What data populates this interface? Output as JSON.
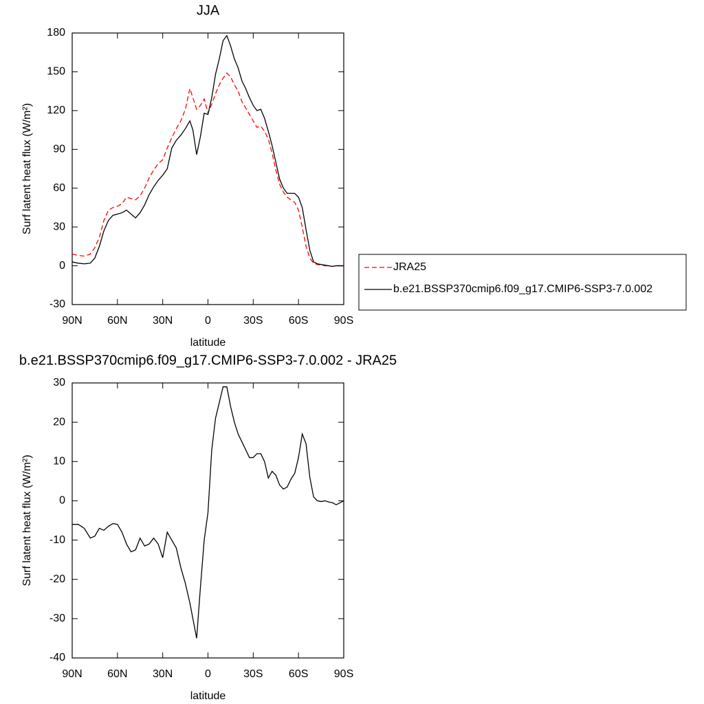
{
  "chart_data": [
    {
      "type": "line",
      "title": "JJA",
      "xlabel": "latitude",
      "ylabel": "Surf latent heat flux (W/m²)",
      "x": [
        90,
        86,
        82,
        78,
        75,
        72,
        69,
        66,
        63,
        60,
        57,
        54,
        51,
        48,
        45,
        42,
        39,
        36,
        33,
        30,
        27,
        24,
        21,
        18,
        15,
        12,
        10,
        7.5,
        5,
        2.5,
        0,
        -2.5,
        -5,
        -7.5,
        -10,
        -12.5,
        -15,
        -17.5,
        -20,
        -22.5,
        -25,
        -27.5,
        -30,
        -32.5,
        -35,
        -37.5,
        -40,
        -42.5,
        -45,
        -47.5,
        -50,
        -52.5,
        -55,
        -57.5,
        -60,
        -62.5,
        -65,
        -67.5,
        -70,
        -72.5,
        -75,
        -77.5,
        -80,
        -82.5,
        -85,
        -87.5,
        -90
      ],
      "series": [
        {
          "name": "JRA25",
          "color": "#ff0000",
          "dash": true,
          "values": [
            9,
            8,
            7.5,
            9,
            14,
            22,
            35,
            43,
            45,
            46,
            48,
            53,
            52,
            51,
            54,
            60,
            68,
            74,
            79,
            82,
            91,
            99,
            106,
            112,
            121,
            137,
            130,
            121,
            124,
            129,
            118,
            125,
            133,
            140,
            145,
            149,
            146,
            140,
            135,
            127,
            122,
            117,
            112,
            107,
            108,
            104,
            98,
            87,
            74,
            63,
            57,
            53,
            51,
            49,
            43,
            30,
            15,
            6,
            2,
            1,
            0.5,
            0,
            0,
            -0.5,
            0,
            0,
            0
          ]
        },
        {
          "name": "b.e21.BSSP370cmip6.f09_g17.CMIP6-SSP3-7.0.002",
          "color": "#000000",
          "dash": false,
          "values": [
            3,
            2,
            1.5,
            2,
            6,
            15,
            27,
            35,
            39,
            40,
            41,
            43,
            40,
            37,
            41,
            47,
            55,
            61,
            66,
            70,
            75,
            91,
            97,
            101,
            106,
            112,
            105,
            86,
            100,
            118,
            117,
            130,
            148,
            160,
            174,
            178,
            170,
            160,
            153,
            143,
            137,
            130,
            124,
            120,
            121,
            114,
            104,
            93,
            80,
            67,
            60,
            56,
            56,
            56,
            53,
            45,
            28,
            12,
            3,
            1.5,
            1,
            0.5,
            0,
            -0.5,
            0,
            0,
            0
          ]
        }
      ],
      "xlim": [
        90,
        -90
      ],
      "xticks": [
        {
          "value": 90,
          "label": "90N"
        },
        {
          "value": 60,
          "label": "60N"
        },
        {
          "value": 30,
          "label": "30N"
        },
        0,
        {
          "value": -30,
          "label": "30S"
        },
        {
          "value": -60,
          "label": "60S"
        },
        {
          "value": -90,
          "label": "90S"
        }
      ],
      "ylim": [
        -30,
        180
      ],
      "yticks": [
        -30,
        0,
        30,
        60,
        90,
        120,
        150,
        180
      ],
      "legend": "right"
    },
    {
      "type": "line",
      "title": "b.e21.BSSP370cmip6.f09_g17.CMIP6-SSP3-7.0.002 - JRA25",
      "xlabel": "latitude",
      "ylabel": "Surf latent heat flux (W/m²)",
      "x": [
        90,
        86,
        82,
        78,
        75,
        72,
        69,
        66,
        63,
        60,
        57,
        54,
        51,
        48,
        45,
        42,
        39,
        36,
        33,
        30,
        27,
        24,
        21,
        18,
        15,
        12,
        10,
        7.5,
        5,
        2.5,
        0,
        -2.5,
        -5,
        -7.5,
        -10,
        -12.5,
        -15,
        -17.5,
        -20,
        -22.5,
        -25,
        -27.5,
        -30,
        -32.5,
        -35,
        -37.5,
        -40,
        -42.5,
        -45,
        -47.5,
        -50,
        -52.5,
        -55,
        -57.5,
        -60,
        -62.5,
        -65,
        -67.5,
        -70,
        -72.5,
        -75,
        -77.5,
        -80,
        -82.5,
        -85,
        -87.5,
        -90
      ],
      "series": [
        {
          "color": "#000000",
          "values": [
            -6,
            -6,
            -7,
            -9.5,
            -9,
            -7,
            -7.5,
            -6.5,
            -5.8,
            -6,
            -8,
            -11,
            -13,
            -12.5,
            -9.5,
            -11.5,
            -11,
            -9.5,
            -11,
            -14.5,
            -8,
            -10,
            -12,
            -17,
            -21,
            -26,
            -30,
            -35,
            -22,
            -10,
            -3,
            13,
            21,
            25,
            29,
            29,
            24,
            20,
            17,
            15,
            13,
            11,
            11,
            12,
            12,
            10,
            5.8,
            7.5,
            6.5,
            4,
            3,
            3.5,
            5.5,
            7,
            11,
            17,
            14.5,
            6,
            1,
            0,
            -0.2,
            0,
            -0.3,
            -0.5,
            -1,
            -0.5,
            0
          ]
        }
      ],
      "xlim": [
        90,
        -90
      ],
      "xticks": [
        {
          "value": 90,
          "label": "90N"
        },
        {
          "value": 60,
          "label": "60N"
        },
        {
          "value": 30,
          "label": "30N"
        },
        0,
        {
          "value": -30,
          "label": "30S"
        },
        {
          "value": -60,
          "label": "60S"
        },
        {
          "value": -90,
          "label": "90S"
        }
      ],
      "ylim": [
        -40,
        30
      ],
      "yticks": [
        -40,
        -30,
        -20,
        -10,
        0,
        10,
        20,
        30
      ]
    }
  ]
}
